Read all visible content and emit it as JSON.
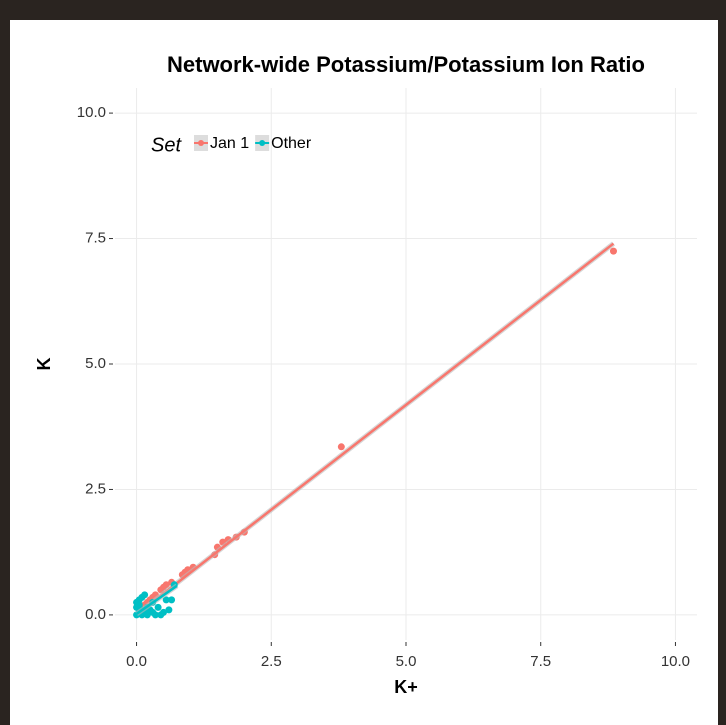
{
  "chart_data": {
    "type": "scatter",
    "title": "Network-wide Potassium/Potassium Ion Ratio",
    "x_label": "K+",
    "y_label": "K",
    "legend_title": "Set",
    "legend_position": "top-left",
    "grid": true,
    "xlim": [
      -0.4,
      10.4
    ],
    "ylim": [
      -0.5,
      10.5
    ],
    "xticks": [
      {
        "value": 0,
        "label": "0.0"
      },
      {
        "value": 2.5,
        "label": "2.5"
      },
      {
        "value": 5,
        "label": "5.0"
      },
      {
        "value": 7.5,
        "label": "7.5"
      },
      {
        "value": 10,
        "label": "10.0"
      }
    ],
    "yticks": [
      {
        "value": 0,
        "label": "0.0"
      },
      {
        "value": 2.5,
        "label": "2.5"
      },
      {
        "value": 5,
        "label": "5.0"
      },
      {
        "value": 7.5,
        "label": "7.5"
      },
      {
        "value": 10,
        "label": "10.0"
      }
    ],
    "series": [
      {
        "name": "Jan 1",
        "color": "#F8766D",
        "x": [
          8.85,
          3.8,
          2.0,
          1.85,
          1.7,
          1.6,
          1.5,
          1.45,
          1.05,
          0.95,
          0.9,
          0.85,
          0.65,
          0.55,
          0.5,
          0.45,
          0.35,
          0.3,
          0.25,
          0.2,
          0.15,
          0.1
        ],
        "values": [
          7.25,
          3.35,
          1.65,
          1.55,
          1.5,
          1.45,
          1.35,
          1.2,
          0.95,
          0.9,
          0.85,
          0.8,
          0.65,
          0.6,
          0.55,
          0.5,
          0.4,
          0.35,
          0.3,
          0.25,
          0.2,
          0.15
        ],
        "fit": {
          "x": [
            0.05,
            8.85
          ],
          "y": [
            0.05,
            7.4
          ]
        }
      },
      {
        "name": "Other",
        "color": "#00BFC4",
        "x": [
          0.0,
          0.05,
          0.1,
          0.1,
          0.15,
          0.2,
          0.05,
          0.05,
          0.1,
          0.2,
          0.25,
          0.3,
          0.35,
          0.4,
          0.45,
          0.5,
          0.55,
          0.7,
          0.65,
          0.6,
          0.3,
          0.15,
          0.0,
          0.0
        ],
        "values": [
          0.0,
          0.05,
          0.0,
          0.1,
          0.05,
          0.15,
          0.2,
          0.3,
          0.35,
          0.0,
          0.1,
          0.05,
          0.0,
          0.15,
          0.0,
          0.05,
          0.3,
          0.6,
          0.3,
          0.1,
          0.25,
          0.4,
          0.15,
          0.25
        ],
        "fit": {
          "x": [
            0.0,
            0.75
          ],
          "y": [
            0.02,
            0.58
          ]
        }
      }
    ]
  }
}
